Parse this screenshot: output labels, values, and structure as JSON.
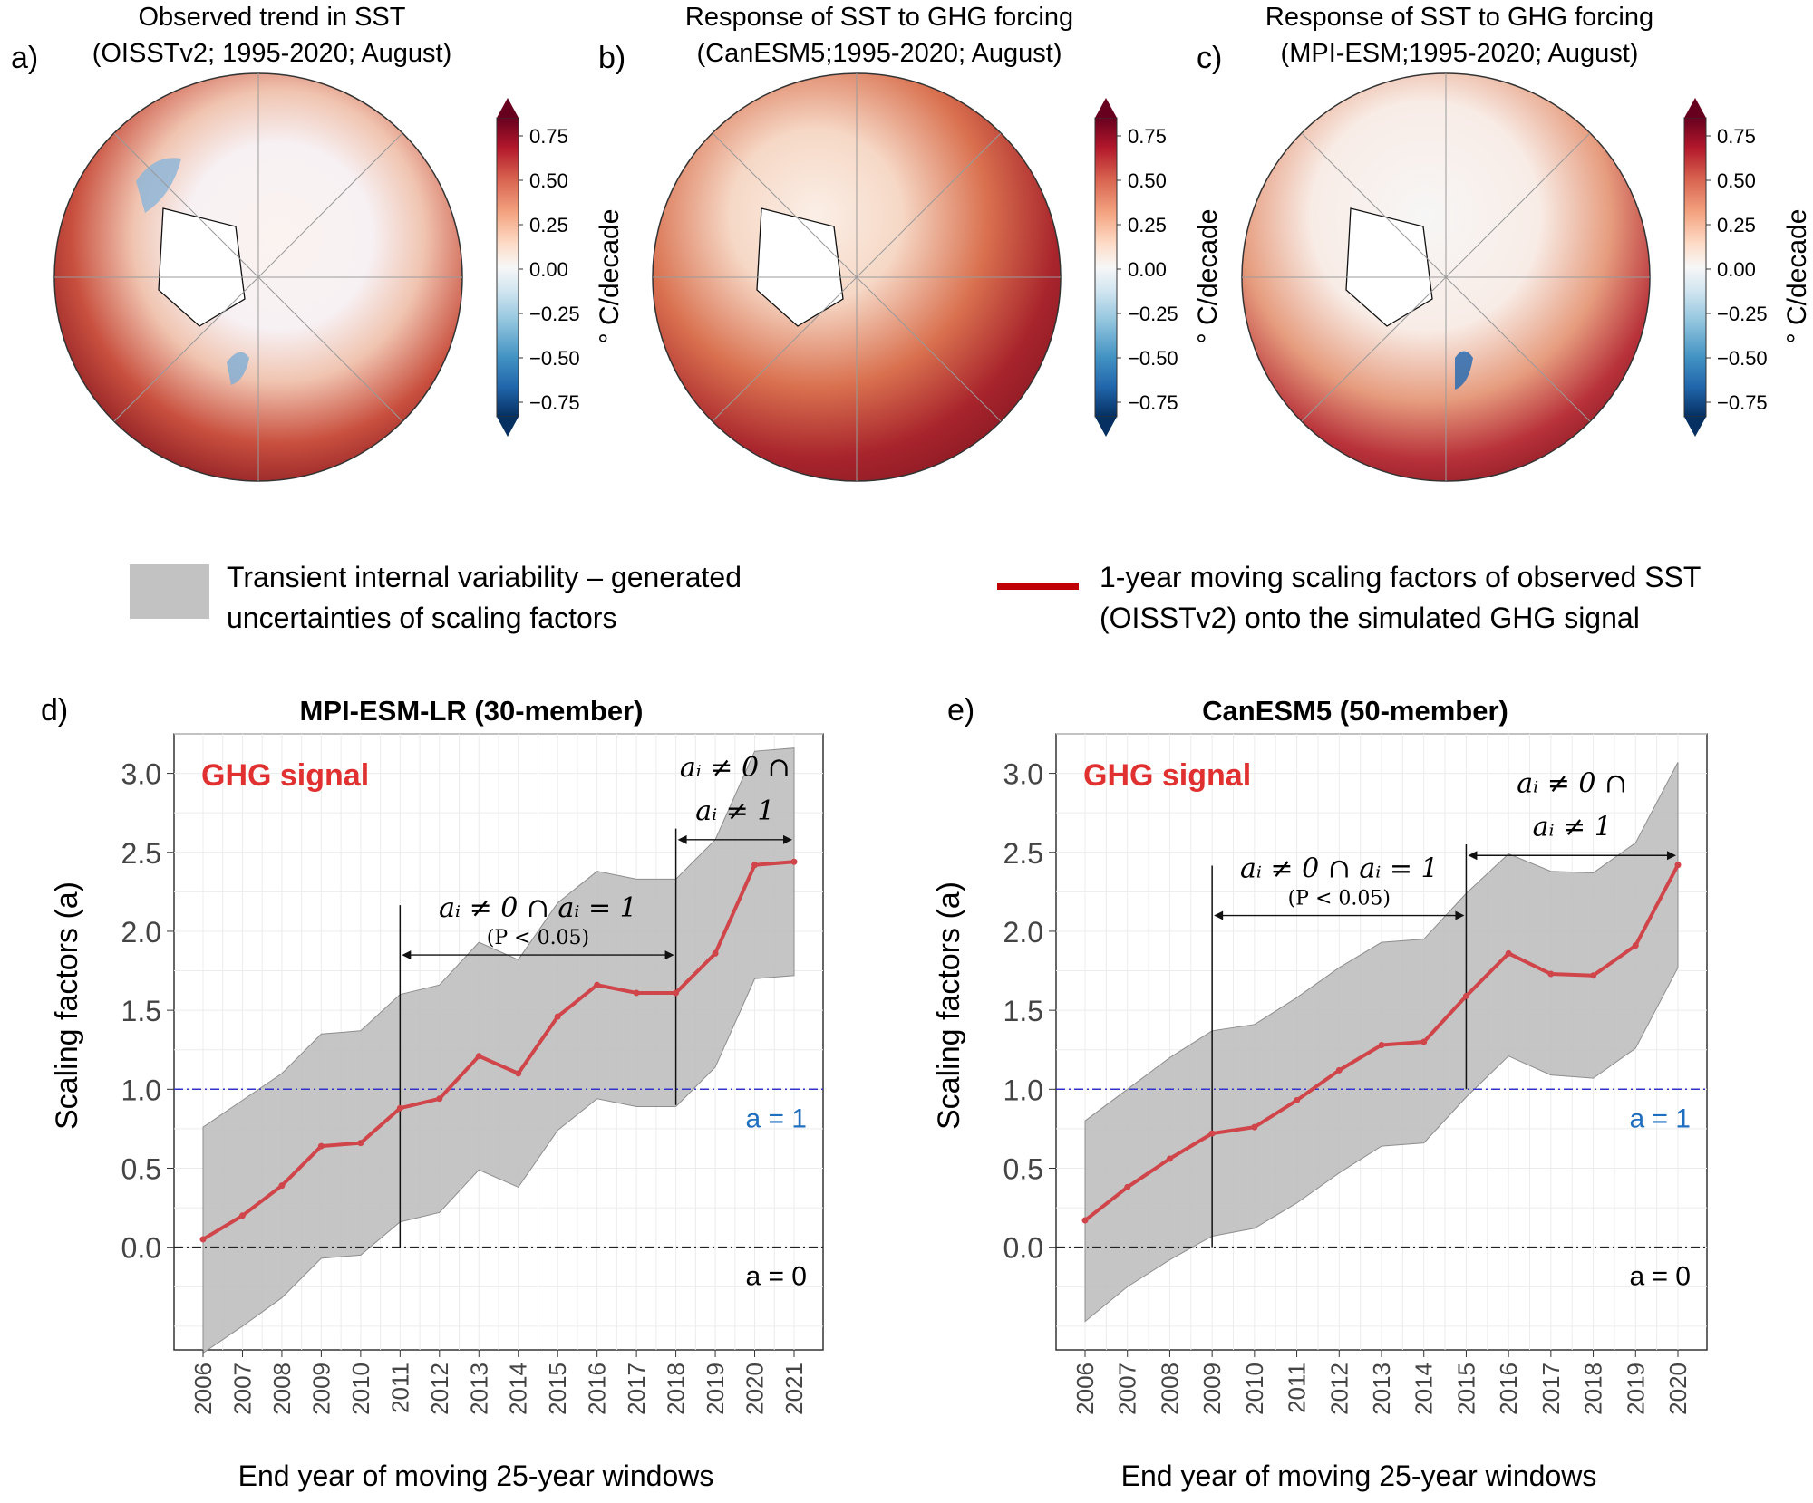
{
  "maps": [
    {
      "label": "a)",
      "title1": "Observed trend in SST",
      "title2": "(OISSTv2; 1995-2020; August)"
    },
    {
      "label": "b)",
      "title1": "Response of SST to GHG forcing",
      "title2": "(CanESM5;1995-2020; August)"
    },
    {
      "label": "c)",
      "title1": "Response of SST to GHG forcing",
      "title2": "(MPI-ESM;1995-2020; August)"
    }
  ],
  "colorbar": {
    "ticks": [
      "0.75",
      "0.50",
      "0.25",
      "0.00",
      "−0.25",
      "−0.50",
      "−0.75"
    ],
    "unit": "° C/decade",
    "colors": [
      "#67001f",
      "#b2182b",
      "#d6604d",
      "#f4a582",
      "#fddbc7",
      "#f7f7f7",
      "#d1e5f0",
      "#92c5de",
      "#4393c3",
      "#2166ac",
      "#053061"
    ]
  },
  "legend": {
    "band_line1": "Transient internal variability – generated",
    "band_line2": "uncertainties of scaling factors",
    "line_line1": "1-year moving scaling factors of observed SST",
    "line_line2": "(OISSTv2) onto the simulated GHG signal",
    "band_color": "#c2c2c2",
    "line_color": "#c00000"
  },
  "chart_data": [
    {
      "type": "line",
      "panel_label": "d)",
      "title": "MPI-ESM-LR (30-member)",
      "signal_label": "GHG signal",
      "xlabel": "End year of moving 25-year windows",
      "ylabel": "Scaling factors (a)",
      "ylim": [
        -0.65,
        3.25
      ],
      "yticks": [
        "0.0",
        "0.5",
        "1.0",
        "1.5",
        "2.0",
        "2.5",
        "3.0"
      ],
      "categories": [
        "2006",
        "2007",
        "2008",
        "2009",
        "2010",
        "2011",
        "2012",
        "2013",
        "2014",
        "2015",
        "2016",
        "2017",
        "2018",
        "2019",
        "2020",
        "2021"
      ],
      "series": [
        {
          "name": "scaling factor",
          "values": [
            0.05,
            0.2,
            0.39,
            0.64,
            0.66,
            0.88,
            0.94,
            1.21,
            1.1,
            1.46,
            1.66,
            1.61,
            1.61,
            1.86,
            2.42,
            2.44
          ]
        },
        {
          "name": "upper bound",
          "values": [
            0.76,
            0.93,
            1.1,
            1.35,
            1.37,
            1.6,
            1.66,
            1.93,
            1.82,
            2.18,
            2.38,
            2.33,
            2.33,
            2.58,
            3.14,
            3.16
          ]
        },
        {
          "name": "lower bound",
          "values": [
            -0.67,
            -0.5,
            -0.32,
            -0.07,
            -0.05,
            0.16,
            0.22,
            0.49,
            0.38,
            0.74,
            0.94,
            0.89,
            0.89,
            1.14,
            1.7,
            1.72
          ]
        }
      ],
      "reference_lines": [
        {
          "label": "a = 1",
          "y": 1.0
        },
        {
          "label": "a = 0",
          "y": 0.0
        }
      ],
      "annotations": [
        {
          "text_main": "aᵢ ≠ 0 ∩ aᵢ = 1",
          "text_sub": "(P < 0.05)",
          "from": "2011",
          "to": "2018"
        },
        {
          "text_main": "aᵢ ≠ 0 ∩",
          "text_sub": "aᵢ ≠ 1",
          "from": "2018",
          "to": "2021"
        }
      ]
    },
    {
      "type": "line",
      "panel_label": "e)",
      "title": "CanESM5 (50-member)",
      "signal_label": "GHG signal",
      "xlabel": "End year of moving 25-year windows",
      "ylabel": "Scaling factors (a)",
      "ylim": [
        -0.65,
        3.25
      ],
      "yticks": [
        "0.0",
        "0.5",
        "1.0",
        "1.5",
        "2.0",
        "2.5",
        "3.0"
      ],
      "categories": [
        "2006",
        "2007",
        "2008",
        "2009",
        "2010",
        "2011",
        "2012",
        "2013",
        "2014",
        "2015",
        "2016",
        "2017",
        "2018",
        "2019",
        "2020"
      ],
      "series": [
        {
          "name": "scaling factor",
          "values": [
            0.17,
            0.38,
            0.56,
            0.72,
            0.76,
            0.93,
            1.12,
            1.28,
            1.3,
            1.59,
            1.86,
            1.73,
            1.72,
            1.91,
            2.42
          ]
        },
        {
          "name": "upper bound",
          "values": [
            0.8,
            1.0,
            1.2,
            1.37,
            1.41,
            1.58,
            1.77,
            1.93,
            1.95,
            2.24,
            2.49,
            2.38,
            2.37,
            2.56,
            3.07
          ]
        },
        {
          "name": "lower bound",
          "values": [
            -0.47,
            -0.25,
            -0.08,
            0.07,
            0.12,
            0.28,
            0.47,
            0.64,
            0.66,
            0.95,
            1.21,
            1.09,
            1.07,
            1.26,
            1.77
          ]
        }
      ],
      "reference_lines": [
        {
          "label": "a = 1",
          "y": 1.0
        },
        {
          "label": "a = 0",
          "y": 0.0
        }
      ],
      "annotations": [
        {
          "text_main": "aᵢ ≠ 0 ∩ aᵢ = 1",
          "text_sub": "(P < 0.05)",
          "from": "2009",
          "to": "2015"
        },
        {
          "text_main": "aᵢ ≠ 0 ∩",
          "text_sub": "aᵢ ≠ 1",
          "from": "2015",
          "to": "2020"
        }
      ]
    }
  ]
}
